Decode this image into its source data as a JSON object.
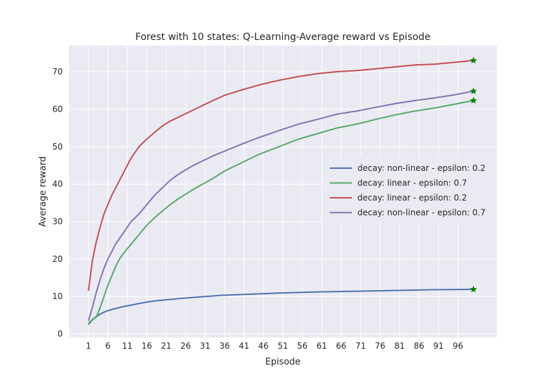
{
  "chart_data": {
    "type": "line",
    "title": "Forest with 10 states: Q-Learning-Average reward vs Episode",
    "xlabel": "Episode",
    "ylabel": "Average reward",
    "xlim": [
      -4,
      106
    ],
    "ylim": [
      -1,
      77
    ],
    "xticks": [
      1,
      6,
      11,
      16,
      21,
      26,
      31,
      36,
      41,
      46,
      51,
      56,
      61,
      66,
      71,
      76,
      81,
      86,
      91,
      96
    ],
    "yticks": [
      0,
      10,
      20,
      30,
      40,
      50,
      60,
      70
    ],
    "grid": true,
    "legend_position": "center-right",
    "end_marker": "star",
    "end_marker_color": "#008000",
    "series": [
      {
        "name": "decay: non-linear - epsilon: 0.2",
        "color": "#4c72b0",
        "x": [
          1,
          2,
          3,
          4,
          5,
          6,
          8,
          10,
          12,
          14,
          16,
          18,
          20,
          25,
          30,
          35,
          40,
          50,
          60,
          70,
          80,
          90,
          100
        ],
        "y": [
          2.8,
          3.8,
          4.6,
          5.3,
          5.8,
          6.2,
          6.8,
          7.3,
          7.7,
          8.1,
          8.5,
          8.8,
          9.0,
          9.5,
          9.9,
          10.3,
          10.5,
          10.9,
          11.2,
          11.4,
          11.6,
          11.8,
          11.9
        ]
      },
      {
        "name": "decay: linear - epsilon: 0.7",
        "color": "#55a868",
        "x": [
          1,
          2,
          3,
          4,
          5,
          6,
          7,
          8,
          9,
          10,
          12,
          14,
          16,
          18,
          20,
          22,
          24,
          26,
          28,
          30,
          33,
          36,
          40,
          45,
          50,
          55,
          60,
          65,
          70,
          75,
          80,
          85,
          90,
          95,
          100
        ],
        "y": [
          2.5,
          3.7,
          4.5,
          7.0,
          10.0,
          13.0,
          15.5,
          18.0,
          20.0,
          21.5,
          24.0,
          26.5,
          29.0,
          31.0,
          32.8,
          34.5,
          36.0,
          37.3,
          38.6,
          39.8,
          41.5,
          43.5,
          45.5,
          48.0,
          50.0,
          52.0,
          53.5,
          55.0,
          56.0,
          57.3,
          58.5,
          59.5,
          60.3,
          61.3,
          62.3
        ]
      },
      {
        "name": "decay: linear - epsilon: 0.2",
        "color": "#c44e52",
        "x": [
          1,
          2,
          3,
          4,
          5,
          6,
          7,
          8,
          9,
          10,
          11,
          12,
          13,
          14,
          16,
          18,
          20,
          22,
          24,
          26,
          28,
          30,
          33,
          36,
          40,
          45,
          50,
          55,
          60,
          65,
          70,
          75,
          80,
          85,
          90,
          95,
          100
        ],
        "y": [
          11.5,
          19.5,
          24.5,
          28.5,
          32.0,
          34.5,
          37.0,
          39.0,
          41.0,
          43.0,
          45.0,
          47.0,
          48.5,
          50.0,
          52.0,
          53.8,
          55.5,
          56.8,
          57.8,
          58.8,
          59.8,
          60.8,
          62.3,
          63.7,
          65.0,
          66.5,
          67.7,
          68.7,
          69.5,
          70.0,
          70.3,
          70.8,
          71.3,
          71.8,
          72.0,
          72.5,
          73.0
        ]
      },
      {
        "name": "decay: non-linear - epsilon: 0.7",
        "color": "#8172b2",
        "x": [
          1,
          2,
          3,
          4,
          5,
          6,
          7,
          8,
          9,
          10,
          12,
          14,
          16,
          18,
          20,
          22,
          24,
          26,
          28,
          30,
          33,
          36,
          40,
          45,
          50,
          55,
          60,
          65,
          70,
          75,
          80,
          85,
          90,
          95,
          100
        ],
        "y": [
          3.5,
          7.0,
          11.0,
          14.5,
          17.5,
          20.0,
          22.0,
          24.0,
          25.5,
          27.0,
          30.0,
          32.0,
          34.5,
          37.0,
          39.0,
          41.0,
          42.5,
          43.8,
          45.0,
          46.0,
          47.5,
          48.8,
          50.5,
          52.5,
          54.3,
          56.0,
          57.3,
          58.7,
          59.5,
          60.5,
          61.5,
          62.3,
          63.0,
          63.8,
          64.8
        ]
      }
    ]
  }
}
